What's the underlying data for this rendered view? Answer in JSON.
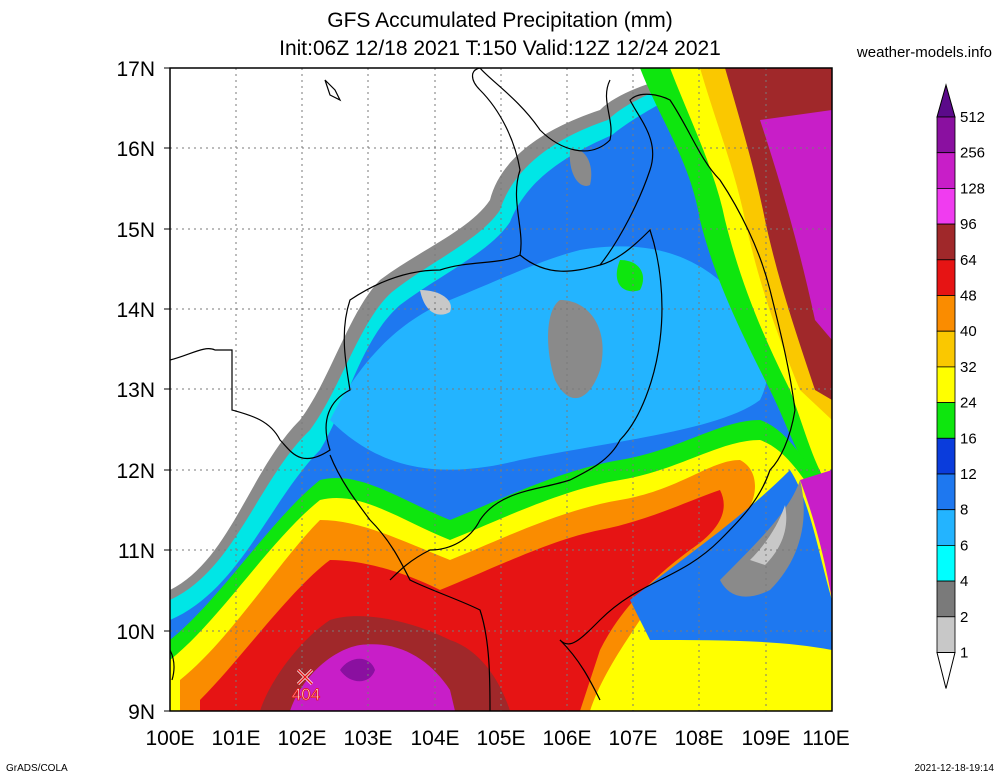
{
  "header": {
    "title": "GFS Accumulated Precipitation (mm)",
    "subtitle": "Init:06Z 12/18 2021 T:150 Valid:12Z 12/24 2021",
    "site": "weather-models.info"
  },
  "map": {
    "lat_labels": [
      "17N",
      "16N",
      "15N",
      "14N",
      "13N",
      "12N",
      "11N",
      "10N",
      "9N"
    ],
    "lon_labels": [
      "100E",
      "101E",
      "102E",
      "103E",
      "104E",
      "105E",
      "106E",
      "107E",
      "108E",
      "109E",
      "110E"
    ],
    "lat_range": [
      9,
      17
    ],
    "lon_range": [
      100,
      110
    ],
    "grid": true,
    "marker": {
      "label": "404",
      "symbol": "cross-icon",
      "lon": 102.1,
      "lat": 9.4
    }
  },
  "colorbar": {
    "labels": [
      "512",
      "256",
      "128",
      "96",
      "64",
      "48",
      "40",
      "32",
      "24",
      "16",
      "12",
      "8",
      "6",
      "4",
      "2",
      "1"
    ],
    "colors": [
      "#5b0a8a",
      "#8a10a0",
      "#c81ec8",
      "#f03cf0",
      "#a0282a",
      "#e61414",
      "#fa8c00",
      "#fac800",
      "#ffff00",
      "#0ee60e",
      "#0a3cdc",
      "#1e78f0",
      "#23b4ff",
      "#00ffff",
      "#7a7a7a",
      "#c8c8c8"
    ]
  },
  "footer": {
    "left": "GrADS/COLA",
    "right": "2021-12-18-19:14"
  }
}
